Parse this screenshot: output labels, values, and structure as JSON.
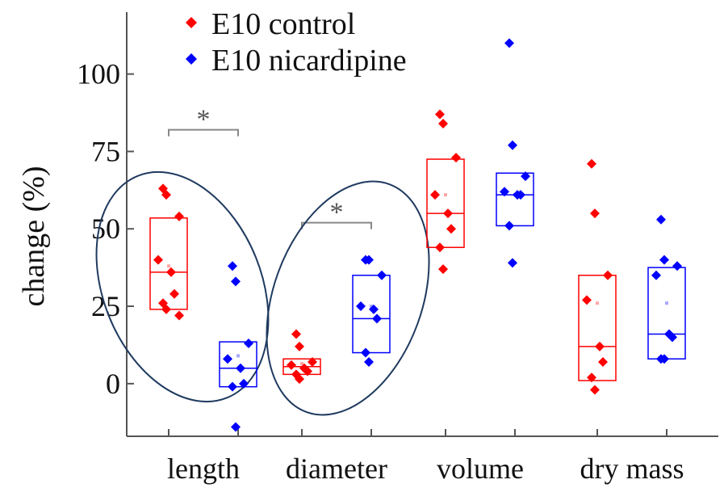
{
  "chart_data": {
    "type": "box",
    "ylabel": "change (%)",
    "xlabel": "",
    "ylim": [
      -17,
      120
    ],
    "yticks": [
      0,
      25,
      50,
      75,
      100
    ],
    "categories": [
      "length",
      "diameter",
      "volume",
      "dry mass"
    ],
    "legend_position": "top-left",
    "colors": {
      "control": "#ff0000",
      "nicardipine": "#0000ff",
      "annotation": "#1f3a5f",
      "bracket": "#888888"
    },
    "series": [
      {
        "name": "E10 control",
        "color": "#ff0000",
        "groups": [
          {
            "category": "length",
            "box": {
              "q1": 24,
              "median": 36,
              "q3": 53.5
            },
            "mean": 38,
            "points": [
              63,
              61,
              54,
              40,
              36,
              29,
              26,
              24,
              22
            ]
          },
          {
            "category": "diameter",
            "box": {
              "q1": 3,
              "median": 5.5,
              "q3": 8
            },
            "mean": 6.5,
            "points": [
              16,
              12,
              7,
              6,
              5,
              4,
              3,
              1.5
            ]
          },
          {
            "category": "volume",
            "box": {
              "q1": 44,
              "median": 55,
              "q3": 72.5
            },
            "mean": 61,
            "points": [
              87,
              84,
              73,
              61,
              55,
              50,
              44,
              37
            ]
          },
          {
            "category": "dry mass",
            "box": {
              "q1": 1,
              "median": 12,
              "q3": 35
            },
            "mean": 26,
            "points": [
              71,
              55,
              35,
              27,
              12,
              7,
              2,
              -2
            ]
          }
        ]
      },
      {
        "name": "E10 nicardipine",
        "color": "#0000ff",
        "groups": [
          {
            "category": "length",
            "box": {
              "q1": -1,
              "median": 5,
              "q3": 13.5
            },
            "mean": 9,
            "points": [
              38,
              33,
              13,
              8,
              5,
              0,
              -1,
              -14
            ]
          },
          {
            "category": "diameter",
            "box": {
              "q1": 10,
              "median": 21,
              "q3": 35
            },
            "mean": 25,
            "points": [
              40,
              40,
              35,
              25,
              24,
              21,
              10,
              7
            ]
          },
          {
            "category": "volume",
            "box": {
              "q1": 51,
              "median": 61,
              "q3": 68
            },
            "mean": 61,
            "points": [
              110,
              77,
              67,
              62,
              61,
              61,
              51,
              39
            ]
          },
          {
            "category": "dry mass",
            "box": {
              "q1": 8,
              "median": 16,
              "q3": 37.5
            },
            "mean": 26,
            "points": [
              53,
              40,
              38,
              35,
              16,
              15,
              8,
              8
            ]
          }
        ]
      }
    ],
    "annotations": [
      {
        "type": "significance",
        "label": "*",
        "category": "length",
        "y": 82
      },
      {
        "type": "significance",
        "label": "*",
        "category": "diameter",
        "y": 52
      }
    ]
  }
}
